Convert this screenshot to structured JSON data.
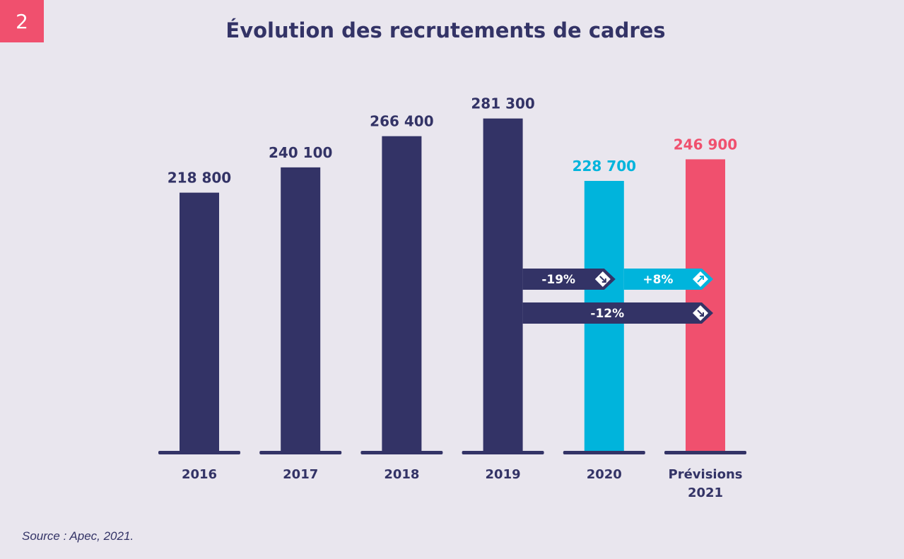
{
  "badge": "2",
  "chart_data": {
    "type": "bar",
    "title": "Évolution des recrutements de cadres",
    "categories": [
      "2016",
      "2017",
      "2018",
      "2019",
      "2020",
      "Prévisions\n2021"
    ],
    "values": [
      218800,
      240100,
      266400,
      281300,
      228700,
      246900
    ],
    "value_labels": [
      "218 800",
      "240 100",
      "266 400",
      "281 300",
      "228 700",
      "246 900"
    ],
    "colors": [
      "#333366",
      "#333366",
      "#333366",
      "#333366",
      "#00b4dc",
      "#f0506e"
    ],
    "ylim": [
      0,
      300000
    ],
    "grid": false,
    "annotations": [
      {
        "label": "-19%",
        "from": "2019",
        "to": "2020",
        "direction": "down",
        "color": "#333366"
      },
      {
        "label": "+8%",
        "from": "2020",
        "to": "Prévisions\n2021",
        "direction": "up",
        "color": "#00b4dc"
      },
      {
        "label": "-12%",
        "from": "2019",
        "to": "Prévisions\n2021",
        "direction": "down",
        "color": "#333366"
      }
    ]
  },
  "source": "Source : Apec, 2021."
}
